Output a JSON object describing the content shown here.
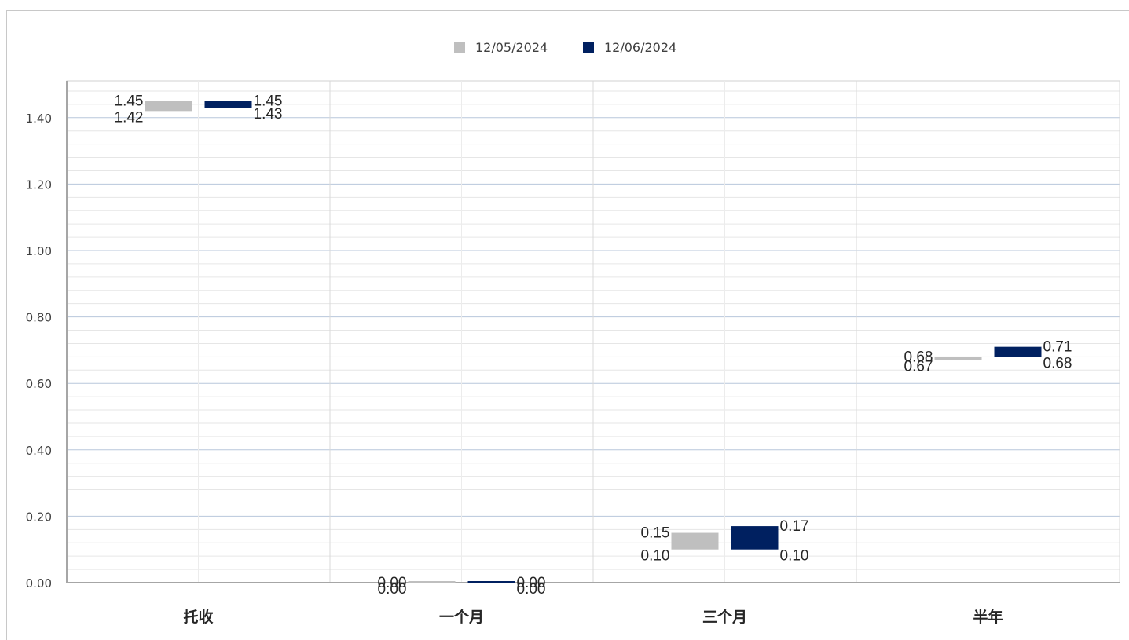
{
  "chart_data": {
    "type": "floating-bar",
    "categories": [
      "托收",
      "一个月",
      "三个月",
      "半年"
    ],
    "series": [
      {
        "name": "12/05/2024",
        "color": "#bfbfbf",
        "low": [
          1.42,
          0.0,
          0.1,
          0.67
        ],
        "high": [
          1.45,
          0.0,
          0.15,
          0.68
        ],
        "low_labels": [
          "1.42",
          "0.00",
          "0.10",
          "0.67"
        ],
        "high_labels": [
          "1.45",
          "0.00",
          "0.15",
          "0.68"
        ]
      },
      {
        "name": "12/06/2024",
        "color": "#002060",
        "low": [
          1.43,
          0.0,
          0.1,
          0.68
        ],
        "high": [
          1.45,
          0.0,
          0.17,
          0.71
        ],
        "low_labels": [
          "1.43",
          "0.00",
          "0.10",
          "0.68"
        ],
        "high_labels": [
          "1.45",
          "0.00",
          "0.17",
          "0.71"
        ]
      }
    ],
    "y_ticks": [
      "0.00",
      "0.20",
      "0.40",
      "0.60",
      "0.80",
      "1.00",
      "1.20",
      "1.40"
    ],
    "ylim": [
      0,
      1.5
    ],
    "grid": true,
    "legend": "top-center",
    "title": "",
    "xlabel": "",
    "ylabel": ""
  }
}
